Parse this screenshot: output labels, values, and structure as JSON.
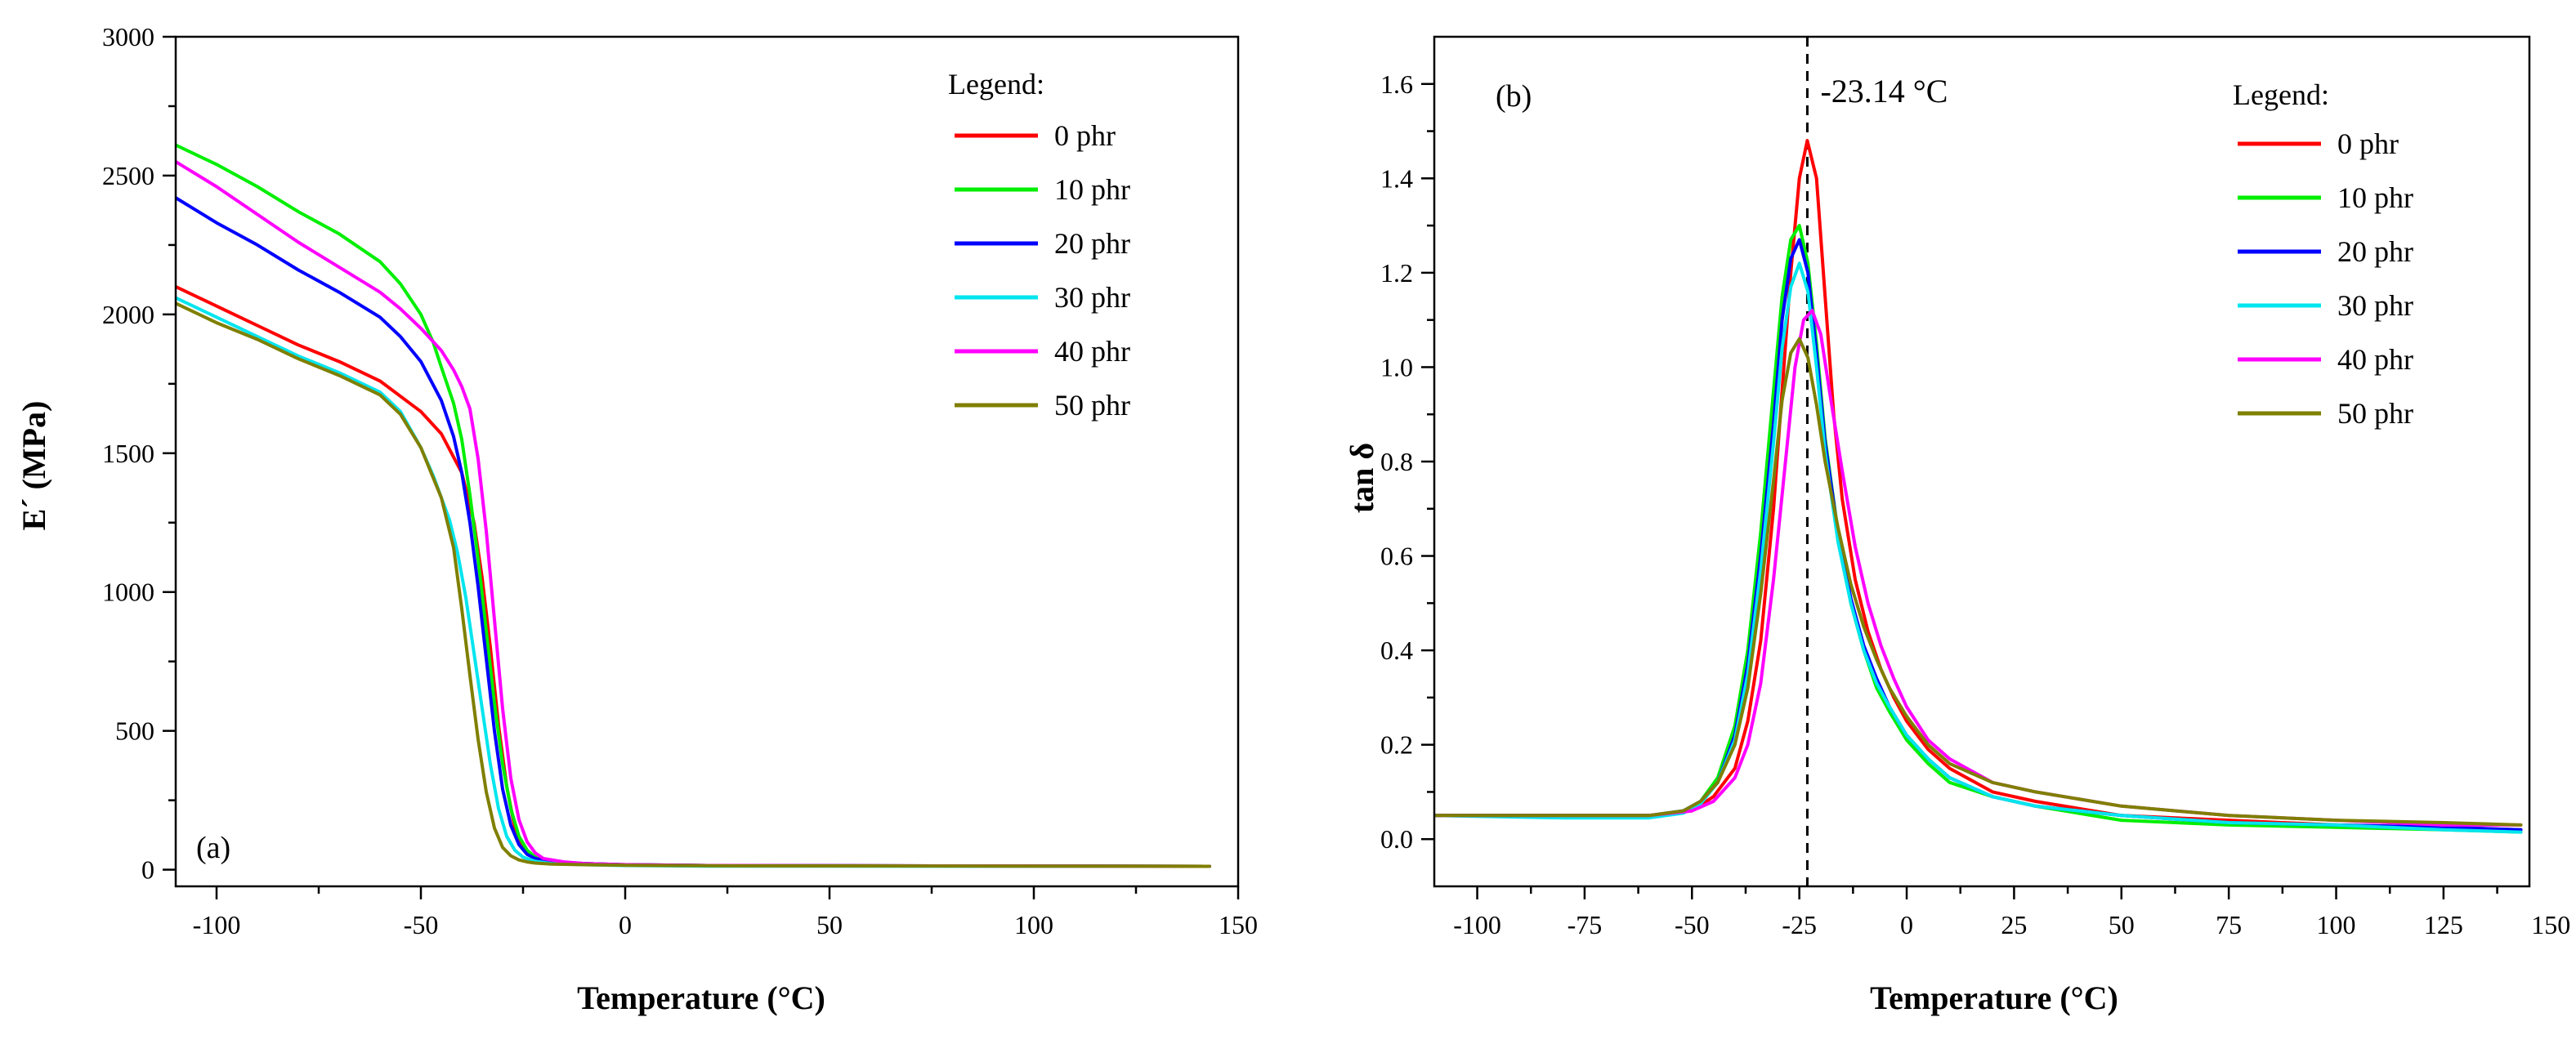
{
  "chart_data": [
    {
      "type": "line",
      "panel_label": "(a)",
      "title": "",
      "xlabel": "Temperature (°C)",
      "ylabel": "E´ (MPa)",
      "xlim": [
        -110,
        150
      ],
      "ylim": [
        -60,
        3000
      ],
      "xticks": [
        -100,
        -50,
        0,
        50,
        100,
        150
      ],
      "xtick_labels": [
        "-100",
        "-50",
        "0",
        "50",
        "100",
        "150"
      ],
      "yticks": [
        0,
        500,
        1000,
        1500,
        2000,
        2500,
        3000
      ],
      "ytick_labels": [
        "0",
        "500",
        "1000",
        "1500",
        "2000",
        "2500",
        "3000"
      ],
      "legend_title": "Legend:",
      "legend_position": "top-right",
      "series": [
        {
          "name": "0 phr",
          "color": "#ff0000",
          "x": [
            -110,
            -100,
            -90,
            -80,
            -70,
            -60,
            -50,
            -45,
            -40,
            -37,
            -35,
            -33,
            -31,
            -29,
            -27,
            -25,
            -22,
            -18,
            -10,
            0,
            20,
            143
          ],
          "y": [
            2100,
            2030,
            1960,
            1890,
            1830,
            1760,
            1650,
            1570,
            1430,
            1250,
            1050,
            800,
            520,
            300,
            150,
            80,
            45,
            30,
            22,
            18,
            15,
            12
          ]
        },
        {
          "name": "10 phr",
          "color": "#00ee00",
          "x": [
            -110,
            -100,
            -90,
            -80,
            -70,
            -60,
            -55,
            -50,
            -47,
            -45,
            -42,
            -40,
            -38,
            -36,
            -34,
            -32,
            -30,
            -28,
            -26,
            -24,
            -22,
            -18,
            -10,
            0,
            20,
            143
          ],
          "y": [
            2610,
            2540,
            2460,
            2370,
            2290,
            2190,
            2110,
            2000,
            1900,
            1810,
            1680,
            1550,
            1350,
            1120,
            860,
            600,
            380,
            220,
            120,
            70,
            45,
            30,
            22,
            18,
            15,
            12
          ]
        },
        {
          "name": "20 phr",
          "color": "#0000ff",
          "x": [
            -110,
            -100,
            -90,
            -80,
            -70,
            -60,
            -55,
            -50,
            -45,
            -42,
            -40,
            -38,
            -36,
            -34,
            -32,
            -30,
            -28,
            -26,
            -24,
            -22,
            -18,
            -10,
            0,
            20,
            143
          ],
          "y": [
            2420,
            2330,
            2250,
            2160,
            2080,
            1990,
            1920,
            1830,
            1690,
            1560,
            1430,
            1250,
            1020,
            760,
            500,
            290,
            160,
            90,
            55,
            40,
            28,
            22,
            18,
            15,
            12
          ]
        },
        {
          "name": "30 phr",
          "color": "#00e5ee",
          "x": [
            -110,
            -100,
            -90,
            -80,
            -70,
            -60,
            -55,
            -50,
            -47,
            -45,
            -43,
            -41,
            -39,
            -37,
            -35,
            -33,
            -31,
            -29,
            -27,
            -25,
            -22,
            -18,
            -10,
            0,
            20,
            143
          ],
          "y": [
            2060,
            1990,
            1920,
            1850,
            1790,
            1720,
            1650,
            1520,
            1420,
            1340,
            1260,
            1140,
            980,
            780,
            580,
            380,
            220,
            120,
            70,
            45,
            30,
            22,
            18,
            15,
            13,
            12
          ]
        },
        {
          "name": "40 phr",
          "color": "#ff00ff",
          "x": [
            -110,
            -100,
            -90,
            -80,
            -70,
            -60,
            -55,
            -50,
            -45,
            -42,
            -40,
            -38,
            -36,
            -34,
            -32,
            -30,
            -28,
            -26,
            -24,
            -22,
            -20,
            -15,
            -10,
            0,
            20,
            143
          ],
          "y": [
            2550,
            2460,
            2360,
            2260,
            2170,
            2080,
            2020,
            1950,
            1870,
            1800,
            1740,
            1660,
            1480,
            1220,
            900,
            580,
            330,
            180,
            100,
            60,
            40,
            28,
            22,
            18,
            15,
            12
          ]
        },
        {
          "name": "50 phr",
          "color": "#7f7f00",
          "x": [
            -110,
            -100,
            -90,
            -80,
            -70,
            -60,
            -55,
            -50,
            -45,
            -42,
            -40,
            -38,
            -36,
            -34,
            -32,
            -30,
            -28,
            -26,
            -24,
            -22,
            -18,
            -10,
            0,
            20,
            143
          ],
          "y": [
            2040,
            1970,
            1910,
            1840,
            1780,
            1710,
            1640,
            1520,
            1340,
            1160,
            940,
            700,
            470,
            280,
            150,
            80,
            50,
            35,
            28,
            24,
            20,
            18,
            16,
            14,
            12
          ]
        }
      ]
    },
    {
      "type": "line",
      "panel_label": "(b)",
      "title": "",
      "xlabel": "Temperature (°C)",
      "ylabel": "tan δ",
      "xlim": [
        -110,
        145
      ],
      "ylim": [
        -0.1,
        1.7
      ],
      "xticks": [
        -100,
        -75,
        -50,
        -25,
        0,
        25,
        50,
        75,
        100,
        125,
        150
      ],
      "xtick_labels": [
        "-100",
        "-75",
        "-50",
        "-25",
        "0",
        "25",
        "50",
        "75",
        "100",
        "125",
        "150"
      ],
      "yticks": [
        0.0,
        0.2,
        0.4,
        0.6,
        0.8,
        1.0,
        1.2,
        1.4,
        1.6
      ],
      "ytick_labels": [
        "0.0",
        "0.2",
        "0.4",
        "0.6",
        "0.8",
        "1.0",
        "1.2",
        "1.4",
        "1.6"
      ],
      "annotation": {
        "text": "-23.14 °C",
        "x": -23.14
      },
      "legend_title": "Legend:",
      "legend_position": "top-right",
      "series": [
        {
          "name": "0 phr",
          "color": "#ff0000",
          "x": [
            -110,
            -80,
            -60,
            -50,
            -45,
            -40,
            -37,
            -34,
            -31,
            -29,
            -27,
            -25,
            -23.14,
            -21,
            -19,
            -17,
            -15,
            -12,
            -9,
            -6,
            -3,
            0,
            5,
            10,
            20,
            30,
            50,
            75,
            100,
            125,
            143
          ],
          "y": [
            0.05,
            0.05,
            0.05,
            0.06,
            0.09,
            0.15,
            0.25,
            0.42,
            0.7,
            0.95,
            1.2,
            1.4,
            1.48,
            1.4,
            1.15,
            0.9,
            0.72,
            0.55,
            0.44,
            0.36,
            0.3,
            0.25,
            0.19,
            0.15,
            0.1,
            0.08,
            0.05,
            0.04,
            0.03,
            0.025,
            0.02
          ]
        },
        {
          "name": "10 phr",
          "color": "#00ee00",
          "x": [
            -110,
            -80,
            -60,
            -52,
            -48,
            -44,
            -40,
            -37,
            -34,
            -31,
            -29,
            -27,
            -25,
            -23,
            -21,
            -19,
            -16,
            -13,
            -10,
            -7,
            -4,
            0,
            5,
            10,
            20,
            30,
            50,
            75,
            100,
            125,
            143
          ],
          "y": [
            0.05,
            0.05,
            0.05,
            0.06,
            0.08,
            0.13,
            0.24,
            0.4,
            0.65,
            0.95,
            1.15,
            1.27,
            1.3,
            1.22,
            1.05,
            0.85,
            0.65,
            0.5,
            0.4,
            0.32,
            0.27,
            0.21,
            0.16,
            0.12,
            0.09,
            0.07,
            0.04,
            0.03,
            0.025,
            0.02,
            0.015
          ]
        },
        {
          "name": "20 phr",
          "color": "#0000ff",
          "x": [
            -110,
            -80,
            -60,
            -52,
            -48,
            -44,
            -40,
            -37,
            -34,
            -31,
            -29,
            -27,
            -25,
            -23,
            -21,
            -19,
            -16,
            -13,
            -10,
            -7,
            -4,
            0,
            5,
            10,
            20,
            30,
            50,
            75,
            100,
            125,
            143
          ],
          "y": [
            0.05,
            0.05,
            0.05,
            0.06,
            0.08,
            0.12,
            0.22,
            0.37,
            0.6,
            0.88,
            1.1,
            1.23,
            1.27,
            1.2,
            1.03,
            0.84,
            0.65,
            0.51,
            0.41,
            0.34,
            0.28,
            0.22,
            0.17,
            0.13,
            0.09,
            0.07,
            0.05,
            0.035,
            0.03,
            0.025,
            0.02
          ]
        },
        {
          "name": "30 phr",
          "color": "#00e5ee",
          "x": [
            -110,
            -80,
            -60,
            -52,
            -48,
            -44,
            -40,
            -37,
            -34,
            -31,
            -29,
            -27,
            -25,
            -23,
            -21,
            -19,
            -16,
            -13,
            -10,
            -7,
            -4,
            0,
            5,
            10,
            20,
            30,
            50,
            75,
            100,
            125,
            143
          ],
          "y": [
            0.05,
            0.045,
            0.045,
            0.055,
            0.075,
            0.12,
            0.21,
            0.35,
            0.57,
            0.84,
            1.04,
            1.17,
            1.22,
            1.16,
            1.0,
            0.82,
            0.63,
            0.5,
            0.4,
            0.33,
            0.28,
            0.22,
            0.17,
            0.13,
            0.09,
            0.07,
            0.05,
            0.035,
            0.03,
            0.02,
            0.015
          ]
        },
        {
          "name": "40 phr",
          "color": "#ff00ff",
          "x": [
            -110,
            -80,
            -60,
            -50,
            -45,
            -40,
            -37,
            -34,
            -31,
            -28,
            -26,
            -24,
            -22,
            -20,
            -18,
            -15,
            -12,
            -9,
            -6,
            -3,
            0,
            5,
            10,
            20,
            30,
            50,
            75,
            100,
            125,
            143
          ],
          "y": [
            0.05,
            0.05,
            0.05,
            0.06,
            0.08,
            0.13,
            0.2,
            0.33,
            0.55,
            0.82,
            1.0,
            1.1,
            1.12,
            1.07,
            0.95,
            0.78,
            0.62,
            0.5,
            0.41,
            0.34,
            0.28,
            0.21,
            0.17,
            0.12,
            0.1,
            0.07,
            0.05,
            0.04,
            0.03,
            0.03
          ]
        },
        {
          "name": "50 phr",
          "color": "#7f7f00",
          "x": [
            -110,
            -80,
            -60,
            -52,
            -48,
            -44,
            -40,
            -37,
            -34,
            -31,
            -29,
            -27,
            -25,
            -23,
            -21,
            -19,
            -16,
            -13,
            -10,
            -7,
            -4,
            0,
            5,
            10,
            20,
            30,
            50,
            75,
            100,
            125,
            143
          ],
          "y": [
            0.05,
            0.05,
            0.05,
            0.06,
            0.08,
            0.12,
            0.2,
            0.32,
            0.52,
            0.76,
            0.93,
            1.03,
            1.06,
            1.02,
            0.92,
            0.8,
            0.66,
            0.54,
            0.45,
            0.38,
            0.32,
            0.26,
            0.2,
            0.16,
            0.12,
            0.1,
            0.07,
            0.05,
            0.04,
            0.035,
            0.03
          ]
        }
      ]
    }
  ]
}
